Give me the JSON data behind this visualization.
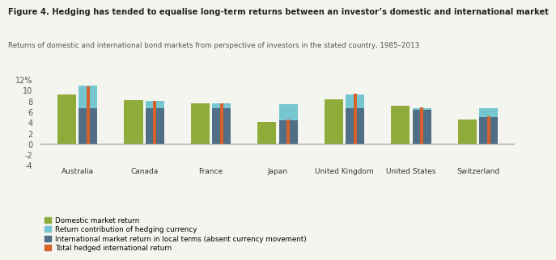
{
  "title": "Figure 4. Hedging has tended to equalise long-term returns between an investor’s domestic and international market",
  "subtitle": "Returns of domestic and international bond markets from perspective of investors in the stated country, 1985–2013",
  "countries": [
    "Australia",
    "Canada",
    "France",
    "Japan",
    "United Kingdom",
    "United States",
    "Switzerland"
  ],
  "domestic_return": [
    9.3,
    8.2,
    7.6,
    4.1,
    8.4,
    7.1,
    4.5
  ],
  "intl_local_return": [
    6.6,
    6.6,
    6.7,
    7.4,
    6.6,
    6.4,
    6.6
  ],
  "hedging_contribution": [
    4.3,
    1.4,
    0.8,
    -3.0,
    2.7,
    0.3,
    -1.6
  ],
  "total_hedged_return": [
    10.8,
    8.0,
    7.5,
    4.5,
    9.4,
    6.8,
    5.2
  ],
  "color_domestic": "#8fac3a",
  "color_hedging": "#75c6d1",
  "color_intl_local": "#506e86",
  "color_total": "#d4622a",
  "ylim": [
    -4,
    13
  ],
  "yticks": [
    -4,
    -2,
    0,
    2,
    4,
    6,
    8,
    10,
    12
  ],
  "ytick_labels": [
    "-4",
    "-2",
    "0",
    "2",
    "4",
    "6",
    "8",
    "10",
    "12%"
  ],
  "background_color": "#f5f5f0",
  "legend_labels": [
    "Domestic market return",
    "Return contribution of hedging currency",
    "International market return in local terms (absent currency movement)",
    "Total hedged international return"
  ]
}
